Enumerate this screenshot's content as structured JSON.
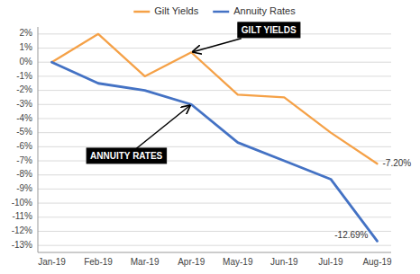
{
  "chart_data": {
    "type": "line",
    "categories": [
      "Jan-19",
      "Feb-19",
      "Mar-19",
      "Apr-19",
      "May-19",
      "Jun-19",
      "Jul-19",
      "Aug-19"
    ],
    "series": [
      {
        "name": "Gilt Yields",
        "color": "#f5a147",
        "values": [
          0.0,
          2.0,
          -1.0,
          0.7,
          -2.3,
          -2.5,
          -5.0,
          -7.2
        ],
        "value_labels": [
          null,
          null,
          null,
          null,
          null,
          null,
          null,
          "-7.20%"
        ]
      },
      {
        "name": "Annuity Rates",
        "color": "#4472c4",
        "values": [
          0.0,
          -1.5,
          -2.0,
          -3.0,
          -5.7,
          -7.0,
          -8.3,
          -12.69
        ],
        "value_labels": [
          null,
          null,
          null,
          null,
          null,
          null,
          null,
          "-12.69%"
        ]
      }
    ],
    "annotations": [
      "GILT YIELDS",
      "ANNUITY RATES"
    ],
    "ylim": [
      -13.5,
      2.5
    ],
    "yticks": [
      {
        "value": 2,
        "label": "2%"
      },
      {
        "value": 1,
        "label": "1%"
      },
      {
        "value": 0,
        "label": "0%"
      },
      {
        "value": -1,
        "label": "-1%"
      },
      {
        "value": -2,
        "label": "-2%"
      },
      {
        "value": -3,
        "label": "-3%"
      },
      {
        "value": -4,
        "label": "-4%"
      },
      {
        "value": -5,
        "label": "-5%"
      },
      {
        "value": -6,
        "label": "-6%"
      },
      {
        "value": -7,
        "label": "-7%"
      },
      {
        "value": -8,
        "label": "-8%"
      },
      {
        "value": -9,
        "label": "-9%"
      },
      {
        "value": -10,
        "label": "-10%"
      },
      {
        "value": -11,
        "label": "-11%"
      },
      {
        "value": -12,
        "label": "-12%"
      },
      {
        "value": -13,
        "label": "-13%"
      }
    ],
    "grid": true,
    "legend": "top"
  }
}
